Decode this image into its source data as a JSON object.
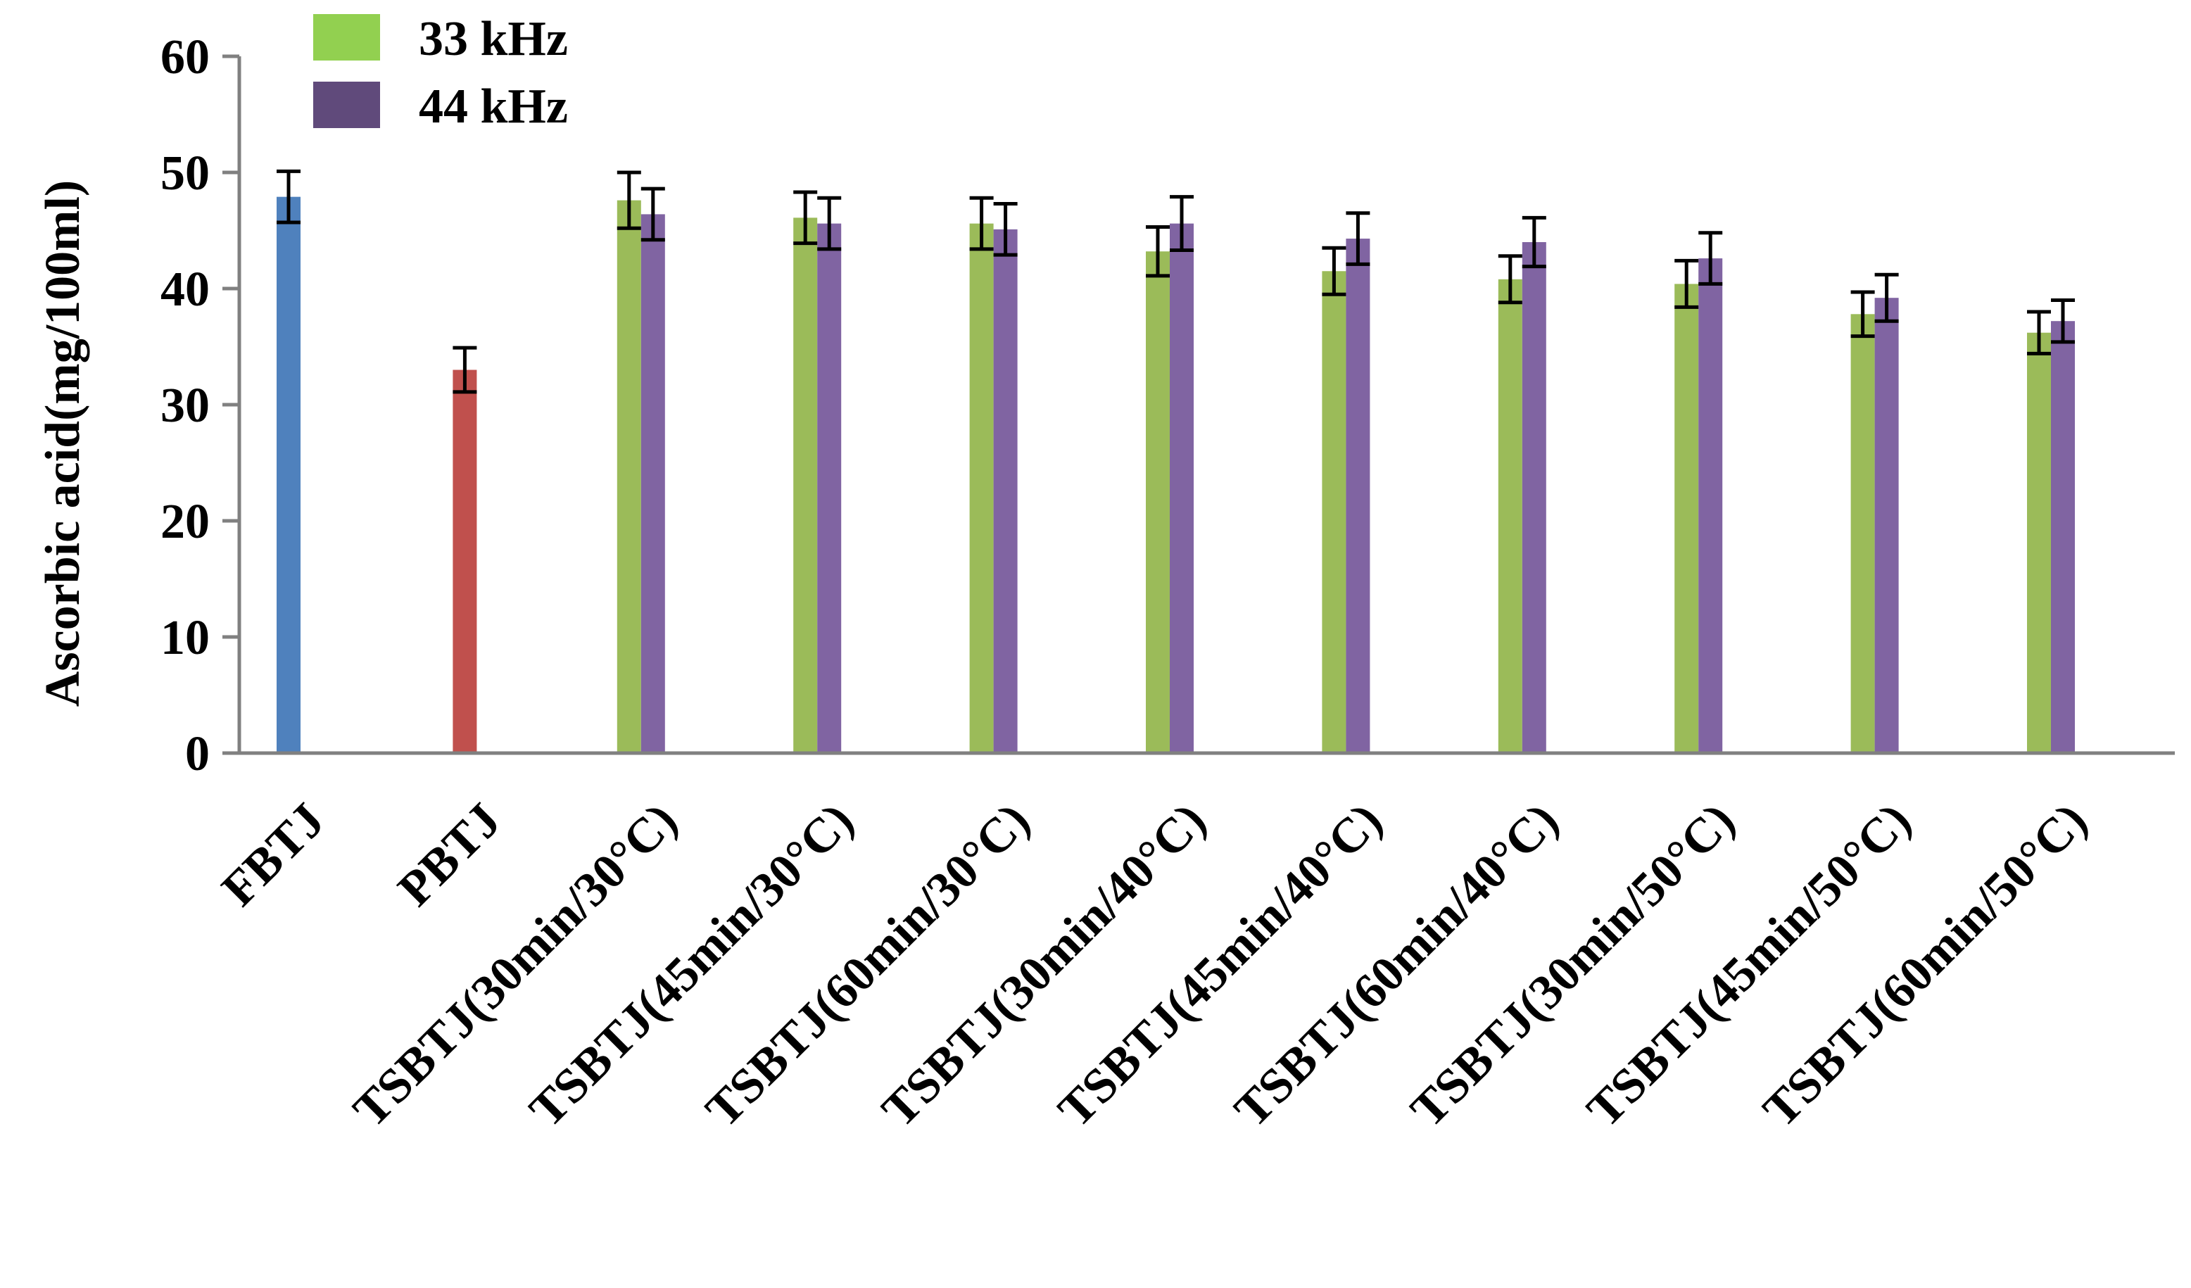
{
  "chart_data": {
    "type": "bar",
    "title": "",
    "xlabel": "",
    "ylabel": "Ascorbic acid(mg/100ml)",
    "ylim": [
      0,
      60
    ],
    "yticks": [
      0,
      10,
      20,
      30,
      40,
      50,
      60
    ],
    "grid": false,
    "legend_position": "top-left",
    "categories": [
      "FBTJ",
      "PBTJ",
      "TSBTJ(30min/30°C)",
      "TSBTJ(45min/30°C)",
      "TSBTJ(60min/30°C)",
      "TSBTJ(30min/40°C)",
      "TSBTJ(45min/40°C)",
      "TSBTJ(60min/40°C)",
      "TSBTJ(30min/50°C)",
      "TSBTJ(45min/50°C)",
      "TSBTJ(60min/50°C)"
    ],
    "controls": [
      {
        "category": "FBTJ",
        "value": 47.9,
        "error": 2.2,
        "color": "#4f81bd"
      },
      {
        "category": "PBTJ",
        "value": 33.0,
        "error": 1.9,
        "color": "#c0504d"
      }
    ],
    "series": [
      {
        "name": "33 kHz",
        "color": "#9bbb59",
        "legend_color": "#92d050",
        "values": [
          null,
          null,
          47.6,
          46.1,
          45.6,
          43.2,
          41.5,
          40.8,
          40.4,
          37.8,
          36.2
        ],
        "errors": [
          null,
          null,
          2.4,
          2.2,
          2.2,
          2.1,
          2.0,
          2.0,
          2.0,
          1.9,
          1.8
        ]
      },
      {
        "name": "44 kHz",
        "color": "#8064a2",
        "legend_color": "#604a7b",
        "values": [
          null,
          null,
          46.4,
          45.6,
          45.1,
          45.6,
          44.3,
          44.0,
          42.6,
          39.2,
          37.2
        ],
        "errors": [
          null,
          null,
          2.2,
          2.2,
          2.2,
          2.3,
          2.2,
          2.1,
          2.2,
          2.0,
          1.8
        ]
      }
    ]
  }
}
